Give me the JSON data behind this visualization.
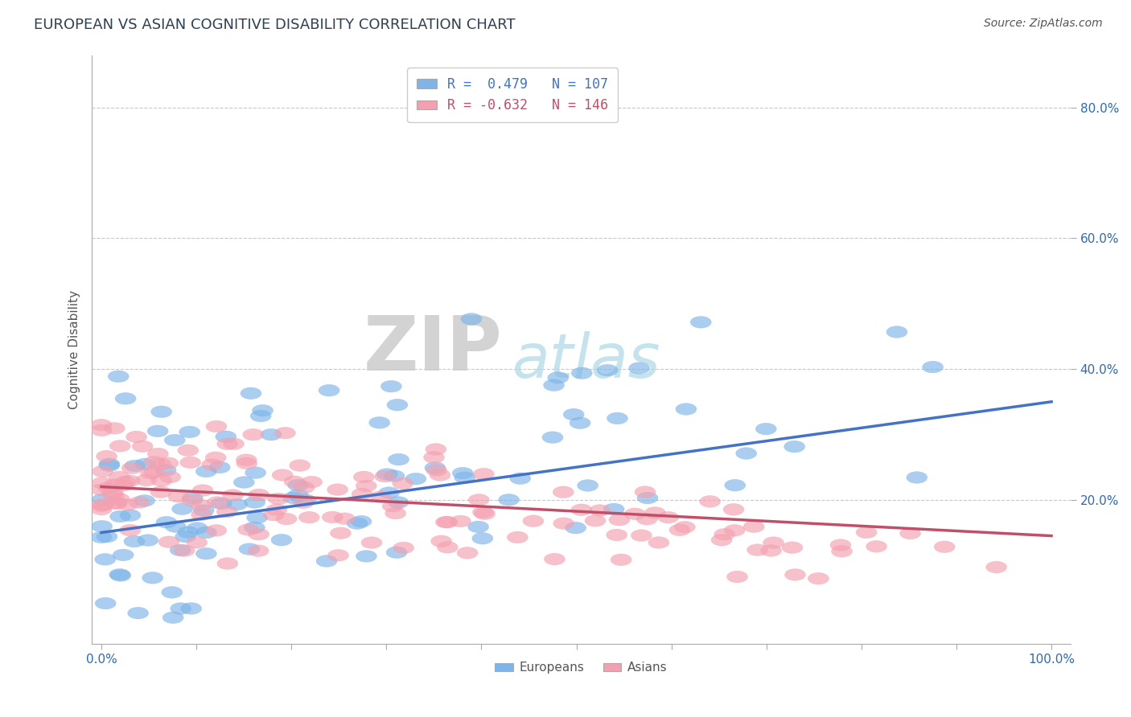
{
  "title": "EUROPEAN VS ASIAN COGNITIVE DISABILITY CORRELATION CHART",
  "source": "Source: ZipAtlas.com",
  "ylabel": "Cognitive Disability",
  "xlim": [
    0.0,
    1.0
  ],
  "ylim": [
    -0.02,
    0.88
  ],
  "ytick_vals": [
    0.2,
    0.4,
    0.6,
    0.8
  ],
  "ytick_labels": [
    "20.0%",
    "40.0%",
    "60.0%",
    "80.0%"
  ],
  "xtick_vals": [
    0.0,
    0.1,
    0.2,
    0.3,
    0.4,
    0.5,
    0.6,
    0.7,
    0.8,
    0.9,
    1.0
  ],
  "xtick_labels": [
    "0.0%",
    "",
    "",
    "",
    "",
    "",
    "",
    "",
    "",
    "",
    "100.0%"
  ],
  "europeans_R": 0.479,
  "europeans_N": 107,
  "asians_R": -0.632,
  "asians_N": 146,
  "eu_line_start_y": 0.15,
  "eu_line_end_y": 0.35,
  "as_line_start_y": 0.22,
  "as_line_end_y": 0.145,
  "european_color": "#7eb5e8",
  "asian_color": "#f4a0b0",
  "european_line_color": "#4472c4",
  "asian_line_color": "#c0506a",
  "background_color": "#ffffff",
  "grid_color": "#c8c8c8",
  "title_color": "#2e4053",
  "axis_label_color": "#2e6aad",
  "source_color": "#555555",
  "ylabel_color": "#555555",
  "watermark_ZIP": "ZIP",
  "watermark_atlas": "atlas",
  "watermark_ZIP_color": "#cccccc",
  "watermark_atlas_color": "#add8e6",
  "eu_seed": 1234,
  "as_seed": 5678
}
